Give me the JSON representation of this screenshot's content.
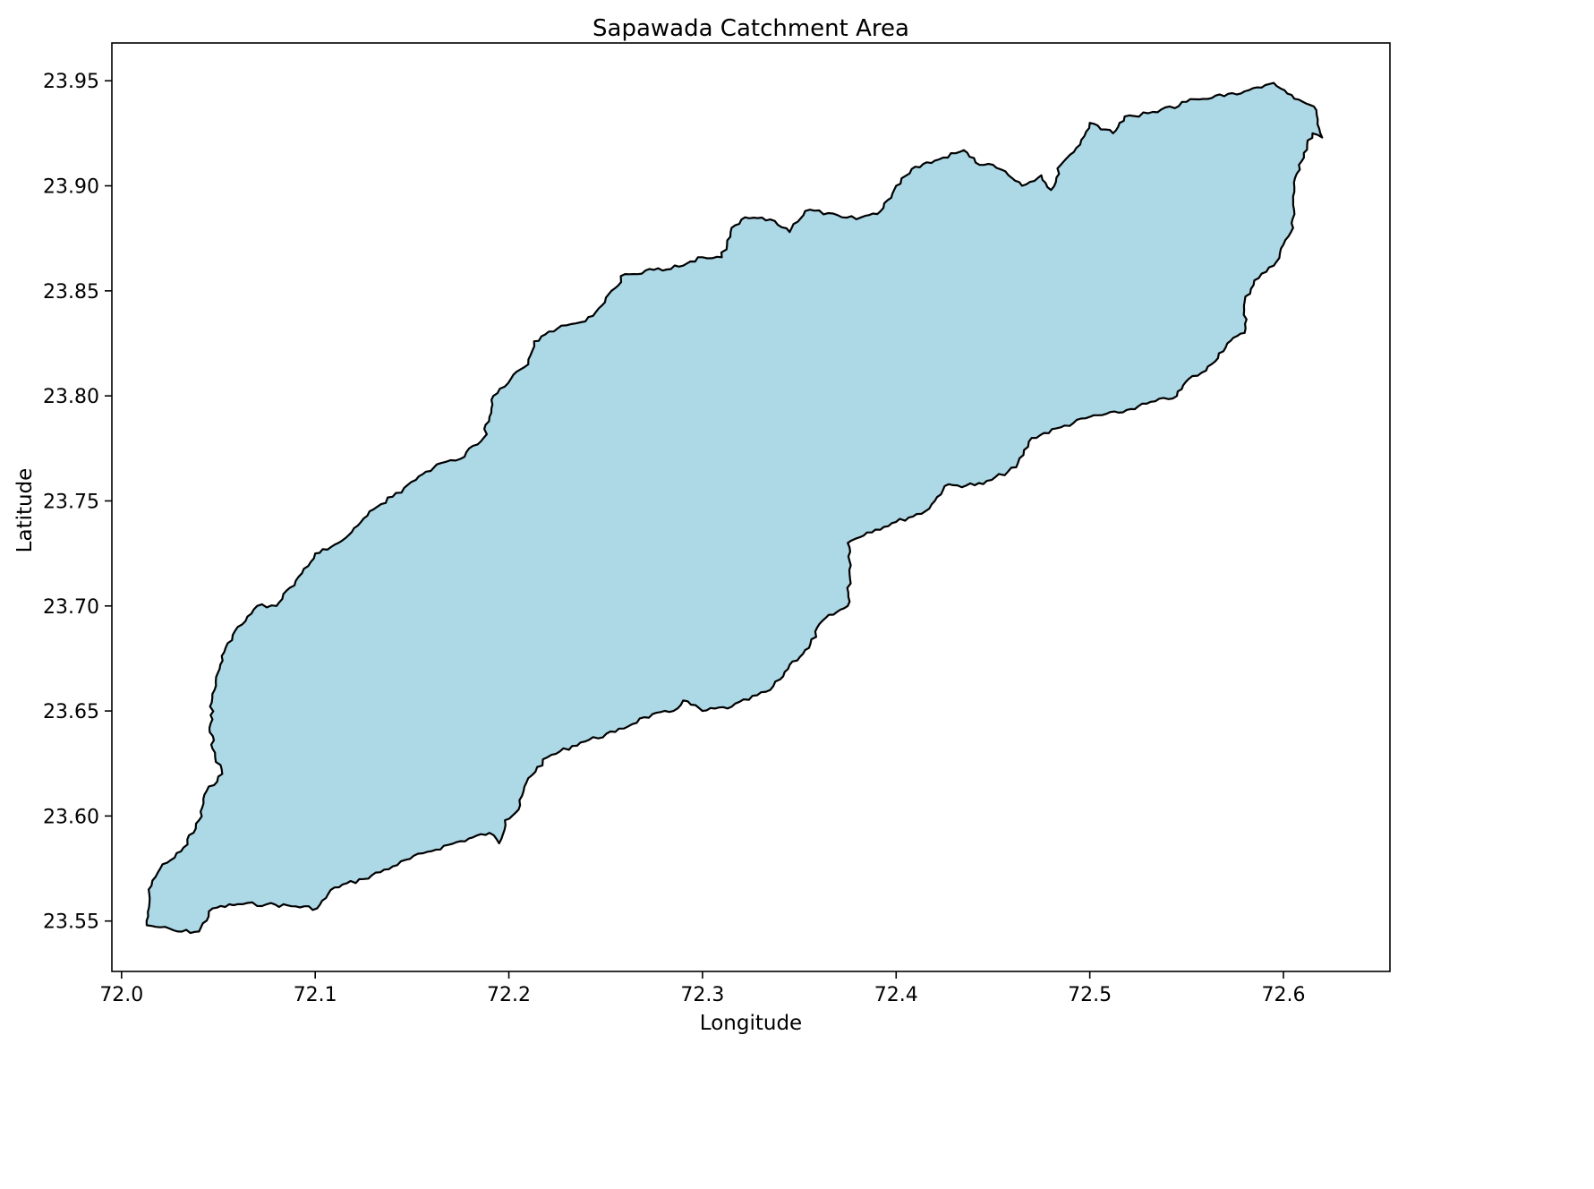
{
  "title": "Sapawada Catchment Area",
  "xlabel": "Longitude",
  "ylabel": "Latitude",
  "colors": {
    "fill": "#add8e6",
    "edge": "#000000",
    "axis": "#000000",
    "background": "#ffffff"
  },
  "chart_data": {
    "type": "polygon-map",
    "title": "Sapawada Catchment Area",
    "xlabel": "Longitude",
    "ylabel": "Latitude",
    "xlim": [
      71.995,
      72.655
    ],
    "ylim": [
      23.526,
      23.968
    ],
    "x_ticks": [
      "72.0",
      "72.1",
      "72.2",
      "72.3",
      "72.4",
      "72.5",
      "72.6"
    ],
    "y_ticks": [
      "23.55",
      "23.60",
      "23.65",
      "23.70",
      "23.75",
      "23.80",
      "23.85",
      "23.90",
      "23.95"
    ],
    "grid": false,
    "legend": "none",
    "polygon_name": "Sapawada catchment",
    "boundary": [
      [
        72.013,
        23.548
      ],
      [
        72.02,
        23.547
      ],
      [
        72.029,
        23.545
      ],
      [
        72.04,
        23.545
      ],
      [
        72.047,
        23.556
      ],
      [
        72.06,
        23.558
      ],
      [
        72.075,
        23.558
      ],
      [
        72.09,
        23.557
      ],
      [
        72.101,
        23.556
      ],
      [
        72.11,
        23.566
      ],
      [
        72.125,
        23.57
      ],
      [
        72.14,
        23.576
      ],
      [
        72.158,
        23.583
      ],
      [
        72.175,
        23.588
      ],
      [
        72.19,
        23.592
      ],
      [
        72.195,
        23.587
      ],
      [
        72.198,
        23.598
      ],
      [
        72.205,
        23.603
      ],
      [
        72.21,
        23.618
      ],
      [
        72.22,
        23.628
      ],
      [
        72.237,
        23.635
      ],
      [
        72.255,
        23.64
      ],
      [
        72.27,
        23.647
      ],
      [
        72.285,
        23.65
      ],
      [
        72.29,
        23.655
      ],
      [
        72.3,
        23.65
      ],
      [
        72.315,
        23.652
      ],
      [
        72.335,
        23.66
      ],
      [
        72.34,
        23.665
      ],
      [
        72.345,
        23.672
      ],
      [
        72.355,
        23.68
      ],
      [
        72.362,
        23.693
      ],
      [
        72.375,
        23.7
      ],
      [
        72.376,
        23.715
      ],
      [
        72.375,
        23.73
      ],
      [
        72.385,
        23.735
      ],
      [
        72.4,
        23.74
      ],
      [
        72.415,
        23.745
      ],
      [
        72.42,
        23.75
      ],
      [
        72.425,
        23.757
      ],
      [
        72.445,
        23.758
      ],
      [
        72.462,
        23.766
      ],
      [
        72.47,
        23.78
      ],
      [
        72.485,
        23.785
      ],
      [
        72.5,
        23.79
      ],
      [
        72.515,
        23.792
      ],
      [
        72.525,
        23.795
      ],
      [
        72.545,
        23.8
      ],
      [
        72.551,
        23.808
      ],
      [
        72.56,
        23.812
      ],
      [
        72.571,
        23.825
      ],
      [
        72.58,
        23.83
      ],
      [
        72.58,
        23.845
      ],
      [
        72.585,
        23.855
      ],
      [
        72.595,
        23.862
      ],
      [
        72.6,
        23.872
      ],
      [
        72.605,
        23.88
      ],
      [
        72.605,
        23.895
      ],
      [
        72.608,
        23.91
      ],
      [
        72.615,
        23.925
      ],
      [
        72.62,
        23.923
      ],
      [
        72.617,
        23.936
      ],
      [
        72.608,
        23.941
      ],
      [
        72.595,
        23.949
      ],
      [
        72.58,
        23.945
      ],
      [
        72.565,
        23.943
      ],
      [
        72.55,
        23.94
      ],
      [
        72.535,
        23.935
      ],
      [
        72.518,
        23.933
      ],
      [
        72.512,
        23.925
      ],
      [
        72.5,
        23.93
      ],
      [
        72.493,
        23.918
      ],
      [
        72.485,
        23.91
      ],
      [
        72.48,
        23.898
      ],
      [
        72.475,
        23.905
      ],
      [
        72.465,
        23.9
      ],
      [
        72.458,
        23.905
      ],
      [
        72.45,
        23.91
      ],
      [
        72.443,
        23.91
      ],
      [
        72.435,
        23.917
      ],
      [
        72.42,
        23.912
      ],
      [
        72.408,
        23.908
      ],
      [
        72.4,
        23.9
      ],
      [
        72.392,
        23.888
      ],
      [
        72.382,
        23.885
      ],
      [
        72.372,
        23.885
      ],
      [
        72.365,
        23.887
      ],
      [
        72.353,
        23.888
      ],
      [
        72.345,
        23.878
      ],
      [
        72.335,
        23.884
      ],
      [
        72.322,
        23.885
      ],
      [
        72.315,
        23.88
      ],
      [
        72.31,
        23.866
      ],
      [
        72.3,
        23.866
      ],
      [
        72.29,
        23.862
      ],
      [
        72.275,
        23.86
      ],
      [
        72.26,
        23.858
      ],
      [
        72.253,
        23.85
      ],
      [
        72.245,
        23.84
      ],
      [
        72.237,
        23.835
      ],
      [
        72.225,
        23.832
      ],
      [
        72.213,
        23.826
      ],
      [
        72.21,
        23.815
      ],
      [
        72.201,
        23.808
      ],
      [
        72.192,
        23.8
      ],
      [
        72.19,
        23.79
      ],
      [
        72.187,
        23.78
      ],
      [
        72.175,
        23.77
      ],
      [
        72.165,
        23.768
      ],
      [
        72.152,
        23.76
      ],
      [
        72.14,
        23.752
      ],
      [
        72.128,
        23.745
      ],
      [
        72.12,
        23.737
      ],
      [
        72.112,
        23.73
      ],
      [
        72.1,
        23.725
      ],
      [
        72.09,
        23.712
      ],
      [
        72.08,
        23.7
      ],
      [
        72.07,
        23.7
      ],
      [
        72.06,
        23.69
      ],
      [
        72.053,
        23.678
      ],
      [
        72.048,
        23.66
      ],
      [
        72.046,
        23.648
      ],
      [
        72.047,
        23.632
      ],
      [
        72.052,
        23.62
      ],
      [
        72.044,
        23.612
      ],
      [
        72.04,
        23.598
      ],
      [
        72.032,
        23.585
      ],
      [
        72.02,
        23.575
      ],
      [
        72.014,
        23.565
      ],
      [
        72.013,
        23.548
      ]
    ]
  }
}
